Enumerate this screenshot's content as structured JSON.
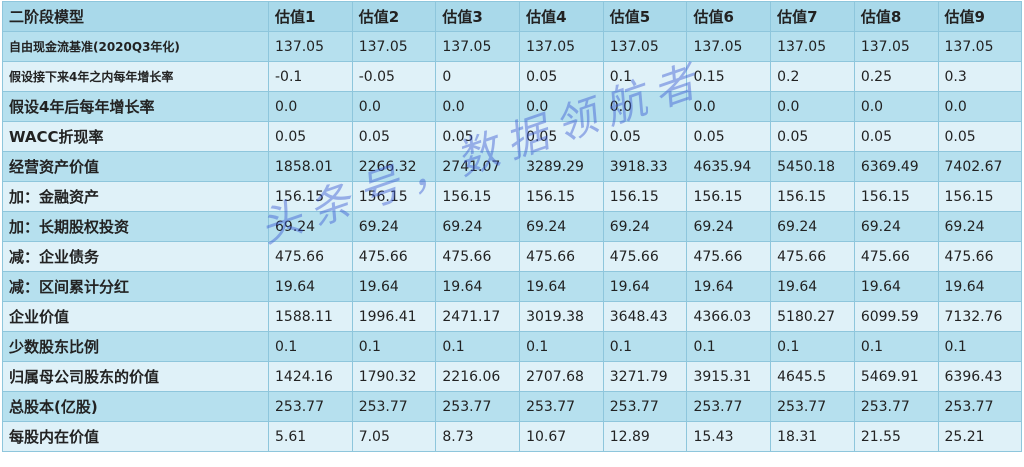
{
  "table": {
    "header": [
      "二阶段模型",
      "估值1",
      "估值2",
      "估值3",
      "估值4",
      "估值5",
      "估值6",
      "估值7",
      "估值8",
      "估值9"
    ],
    "rows": [
      [
        "自由现金流基准(2020Q3年化)",
        "137.05",
        "137.05",
        "137.05",
        "137.05",
        "137.05",
        "137.05",
        "137.05",
        "137.05",
        "137.05"
      ],
      [
        "假设接下来4年之内每年增长率",
        "-0.1",
        "-0.05",
        "0",
        "0.05",
        "0.1",
        "0.15",
        "0.2",
        "0.25",
        "0.3"
      ],
      [
        "假设4年后每年增长率",
        "0.0",
        "0.0",
        "0.0",
        "0.0",
        "0.0",
        "0.0",
        "0.0",
        "0.0",
        "0.0"
      ],
      [
        "WACC折现率",
        "0.05",
        "0.05",
        "0.05",
        "0.05",
        "0.05",
        "0.05",
        "0.05",
        "0.05",
        "0.05"
      ],
      [
        "经营资产价值",
        "1858.01",
        "2266.32",
        "2741.07",
        "3289.29",
        "3918.33",
        "4635.94",
        "5450.18",
        "6369.49",
        "7402.67"
      ],
      [
        "加：金融资产",
        "156.15",
        "156.15",
        "156.15",
        "156.15",
        "156.15",
        "156.15",
        "156.15",
        "156.15",
        "156.15"
      ],
      [
        "加：长期股权投资",
        "69.24",
        "69.24",
        "69.24",
        "69.24",
        "69.24",
        "69.24",
        "69.24",
        "69.24",
        "69.24"
      ],
      [
        "减：企业债务",
        "475.66",
        "475.66",
        "475.66",
        "475.66",
        "475.66",
        "475.66",
        "475.66",
        "475.66",
        "475.66"
      ],
      [
        "减：区间累计分红",
        "19.64",
        "19.64",
        "19.64",
        "19.64",
        "19.64",
        "19.64",
        "19.64",
        "19.64",
        "19.64"
      ],
      [
        "企业价值",
        "1588.11",
        "1996.41",
        "2471.17",
        "3019.38",
        "3648.43",
        "4366.03",
        "5180.27",
        "6099.59",
        "7132.76"
      ],
      [
        "少数股东比例",
        "0.1",
        "0.1",
        "0.1",
        "0.1",
        "0.1",
        "0.1",
        "0.1",
        "0.1",
        "0.1"
      ],
      [
        "归属母公司股东的价值",
        "1424.16",
        "1790.32",
        "2216.06",
        "2707.68",
        "3271.79",
        "3915.31",
        "4645.5",
        "5469.91",
        "6396.43"
      ],
      [
        "总股本(亿股)",
        "253.77",
        "253.77",
        "253.77",
        "253.77",
        "253.77",
        "253.77",
        "253.77",
        "253.77",
        "253.77"
      ],
      [
        "每股内在价值",
        "5.61",
        "7.05",
        "8.73",
        "10.67",
        "12.89",
        "15.43",
        "18.31",
        "21.55",
        "25.21"
      ]
    ]
  },
  "watermark": "头条号，数据领航者"
}
